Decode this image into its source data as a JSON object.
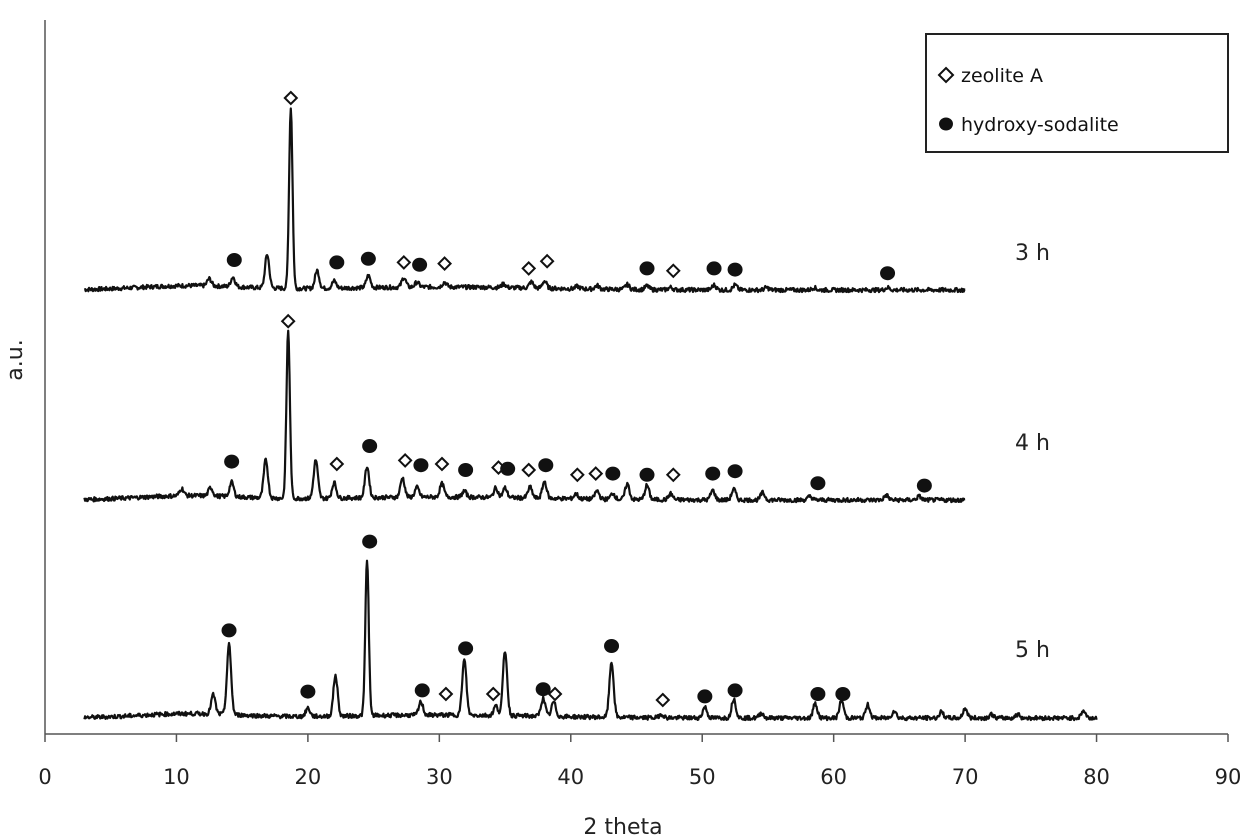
{
  "chart_data": {
    "type": "line",
    "title": "",
    "xlabel": "2 theta",
    "ylabel": "a.u.",
    "xlim": [
      0,
      90
    ],
    "x_ticks": [
      0,
      10,
      20,
      30,
      40,
      50,
      60,
      70,
      80,
      90
    ],
    "grid": false,
    "legend_position": "top-right",
    "legend": [
      {
        "marker": "diamond",
        "label": "zeolite A"
      },
      {
        "marker": "dot",
        "label": "hydroxy-sodalite"
      }
    ],
    "series": [
      {
        "name": "3 h",
        "label": "3 h",
        "x_range": [
          3,
          70
        ],
        "baseline": 0.0,
        "peaks": [
          [
            12.5,
            0.6,
            "s"
          ],
          [
            14.3,
            0.8,
            "s"
          ],
          [
            16.9,
            2.8,
            "s"
          ],
          [
            18.7,
            15.0,
            "z"
          ],
          [
            20.7,
            1.5,
            "s"
          ],
          [
            22.0,
            0.6,
            "s"
          ],
          [
            24.6,
            1.0,
            "s"
          ],
          [
            27.3,
            0.8,
            "z"
          ],
          [
            28.3,
            0.4,
            "s"
          ],
          [
            30.4,
            0.4,
            "z"
          ],
          [
            34.9,
            0.3,
            "s"
          ],
          [
            37.0,
            0.5,
            "z"
          ],
          [
            38.0,
            0.6,
            "z"
          ],
          [
            40.5,
            0.2,
            "s"
          ],
          [
            42.0,
            0.3,
            "s"
          ],
          [
            44.3,
            0.4,
            "s"
          ],
          [
            45.8,
            0.3,
            "s"
          ],
          [
            47.6,
            0.2,
            "z"
          ],
          [
            50.9,
            0.4,
            "s"
          ],
          [
            52.5,
            0.4,
            "s"
          ],
          [
            54.9,
            0.2,
            "s"
          ],
          [
            58.5,
            0.2,
            "s"
          ],
          [
            64.1,
            0.2,
            "s"
          ]
        ],
        "markers": [
          {
            "x": 14.4,
            "y": 2.5,
            "type": "dot"
          },
          {
            "x": 18.7,
            "y": 16.0,
            "type": "diamond"
          },
          {
            "x": 22.2,
            "y": 2.3,
            "type": "dot"
          },
          {
            "x": 24.6,
            "y": 2.6,
            "type": "dot"
          },
          {
            "x": 27.3,
            "y": 2.3,
            "type": "diamond"
          },
          {
            "x": 28.5,
            "y": 2.1,
            "type": "dot"
          },
          {
            "x": 30.4,
            "y": 2.2,
            "type": "diamond"
          },
          {
            "x": 36.8,
            "y": 1.8,
            "type": "diamond"
          },
          {
            "x": 38.2,
            "y": 2.4,
            "type": "diamond"
          },
          {
            "x": 45.8,
            "y": 1.8,
            "type": "dot"
          },
          {
            "x": 47.8,
            "y": 1.6,
            "type": "diamond"
          },
          {
            "x": 50.9,
            "y": 1.8,
            "type": "dot"
          },
          {
            "x": 52.5,
            "y": 1.7,
            "type": "dot"
          },
          {
            "x": 64.1,
            "y": 1.4,
            "type": "dot"
          }
        ]
      },
      {
        "name": "4 h",
        "label": "4 h",
        "x_range": [
          3,
          70
        ],
        "baseline": 0.0,
        "peaks": [
          [
            10.4,
            0.6,
            "s"
          ],
          [
            12.6,
            0.7,
            "s"
          ],
          [
            14.2,
            1.2,
            "s"
          ],
          [
            16.8,
            3.2,
            "s"
          ],
          [
            18.5,
            14.0,
            "z"
          ],
          [
            20.6,
            3.2,
            "s"
          ],
          [
            22.0,
            1.3,
            "z"
          ],
          [
            24.5,
            2.6,
            "s"
          ],
          [
            27.2,
            1.6,
            "z"
          ],
          [
            28.3,
            0.8,
            "s"
          ],
          [
            30.2,
            1.1,
            "z"
          ],
          [
            31.9,
            0.5,
            "s"
          ],
          [
            34.3,
            0.8,
            "z"
          ],
          [
            35.0,
            0.8,
            "s"
          ],
          [
            36.9,
            0.9,
            "z"
          ],
          [
            38.0,
            1.4,
            "s"
          ],
          [
            40.4,
            0.4,
            "z"
          ],
          [
            42.0,
            0.7,
            "z"
          ],
          [
            43.2,
            0.5,
            "s"
          ],
          [
            44.3,
            1.3,
            "s"
          ],
          [
            45.8,
            1.2,
            "s"
          ],
          [
            47.6,
            0.5,
            "z"
          ],
          [
            50.8,
            0.8,
            "s"
          ],
          [
            52.4,
            0.9,
            "s"
          ],
          [
            54.6,
            0.6,
            "s"
          ],
          [
            58.2,
            0.3,
            "s"
          ],
          [
            64.0,
            0.4,
            "s"
          ],
          [
            66.5,
            0.3,
            "s"
          ]
        ],
        "markers": [
          {
            "x": 14.2,
            "y": 3.2,
            "type": "dot"
          },
          {
            "x": 18.5,
            "y": 14.9,
            "type": "diamond"
          },
          {
            "x": 22.2,
            "y": 3.0,
            "type": "diamond"
          },
          {
            "x": 24.7,
            "y": 4.5,
            "type": "dot"
          },
          {
            "x": 27.4,
            "y": 3.3,
            "type": "diamond"
          },
          {
            "x": 28.6,
            "y": 2.9,
            "type": "dot"
          },
          {
            "x": 30.2,
            "y": 3.0,
            "type": "diamond"
          },
          {
            "x": 32.0,
            "y": 2.5,
            "type": "dot"
          },
          {
            "x": 34.5,
            "y": 2.7,
            "type": "diamond"
          },
          {
            "x": 35.2,
            "y": 2.6,
            "type": "dot"
          },
          {
            "x": 36.8,
            "y": 2.5,
            "type": "diamond"
          },
          {
            "x": 38.1,
            "y": 2.9,
            "type": "dot"
          },
          {
            "x": 40.5,
            "y": 2.1,
            "type": "diamond"
          },
          {
            "x": 41.9,
            "y": 2.2,
            "type": "diamond"
          },
          {
            "x": 43.2,
            "y": 2.2,
            "type": "dot"
          },
          {
            "x": 45.8,
            "y": 2.1,
            "type": "dot"
          },
          {
            "x": 47.8,
            "y": 2.1,
            "type": "diamond"
          },
          {
            "x": 50.8,
            "y": 2.2,
            "type": "dot"
          },
          {
            "x": 52.5,
            "y": 2.4,
            "type": "dot"
          },
          {
            "x": 58.8,
            "y": 1.4,
            "type": "dot"
          },
          {
            "x": 66.9,
            "y": 1.2,
            "type": "dot"
          }
        ]
      },
      {
        "name": "5 h",
        "label": "5 h",
        "x_range": [
          3,
          80
        ],
        "baseline": 0.0,
        "peaks": [
          [
            12.8,
            1.6,
            "s"
          ],
          [
            14.0,
            5.8,
            "s"
          ],
          [
            20.0,
            0.7,
            "s"
          ],
          [
            22.1,
            3.4,
            "s"
          ],
          [
            24.5,
            13.0,
            "s"
          ],
          [
            28.6,
            1.1,
            "s"
          ],
          [
            31.9,
            4.6,
            "s"
          ],
          [
            34.3,
            0.8,
            "z"
          ],
          [
            35.0,
            5.4,
            "s"
          ],
          [
            37.9,
            1.5,
            "s"
          ],
          [
            38.7,
            1.2,
            "z"
          ],
          [
            43.1,
            4.6,
            "s"
          ],
          [
            46.9,
            0.3,
            "z"
          ],
          [
            50.2,
            0.9,
            "s"
          ],
          [
            52.4,
            1.6,
            "s"
          ],
          [
            54.5,
            0.4,
            "s"
          ],
          [
            58.6,
            1.2,
            "s"
          ],
          [
            60.6,
            1.5,
            "s"
          ],
          [
            62.6,
            1.1,
            "s"
          ],
          [
            64.6,
            0.6,
            "s"
          ],
          [
            68.2,
            0.5,
            "s"
          ],
          [
            70.0,
            0.8,
            "s"
          ],
          [
            72.0,
            0.3,
            "s"
          ],
          [
            74.0,
            0.3,
            "s"
          ],
          [
            79.0,
            0.6,
            "s"
          ]
        ],
        "markers": [
          {
            "x": 14.0,
            "y": 7.3,
            "type": "dot"
          },
          {
            "x": 20.0,
            "y": 2.2,
            "type": "dot"
          },
          {
            "x": 24.7,
            "y": 14.7,
            "type": "dot"
          },
          {
            "x": 28.7,
            "y": 2.3,
            "type": "dot"
          },
          {
            "x": 30.5,
            "y": 2.0,
            "type": "diamond"
          },
          {
            "x": 32.0,
            "y": 5.8,
            "type": "dot"
          },
          {
            "x": 34.1,
            "y": 2.0,
            "type": "diamond"
          },
          {
            "x": 37.9,
            "y": 2.4,
            "type": "dot"
          },
          {
            "x": 38.8,
            "y": 2.0,
            "type": "diamond"
          },
          {
            "x": 43.1,
            "y": 6.0,
            "type": "dot"
          },
          {
            "x": 47.0,
            "y": 1.5,
            "type": "diamond"
          },
          {
            "x": 50.2,
            "y": 1.8,
            "type": "dot"
          },
          {
            "x": 52.5,
            "y": 2.3,
            "type": "dot"
          },
          {
            "x": 58.8,
            "y": 2.0,
            "type": "dot"
          },
          {
            "x": 60.7,
            "y": 2.0,
            "type": "dot"
          }
        ]
      }
    ]
  }
}
